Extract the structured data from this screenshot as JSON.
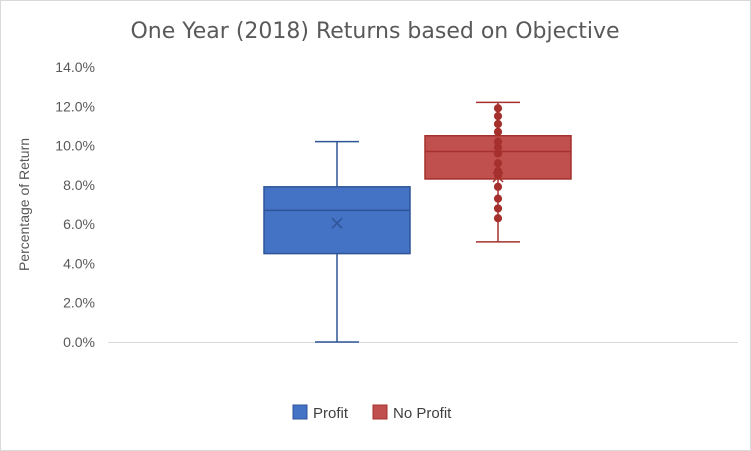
{
  "chart_data": {
    "type": "box",
    "title": "One Year (2018) Returns based on Objective",
    "xlabel": "",
    "ylabel": "Percentage of Return",
    "ylim": [
      0,
      14
    ],
    "y_ticks": [
      "0.0%",
      "2.0%",
      "4.0%",
      "6.0%",
      "8.0%",
      "10.0%",
      "12.0%",
      "14.0%"
    ],
    "y_tick_values": [
      0,
      2,
      4,
      6,
      8,
      10,
      12,
      14
    ],
    "grid": false,
    "legend_position": "bottom",
    "series": [
      {
        "name": "Profit",
        "color": "#4472c4",
        "edge_color": "#2f5597",
        "min": 0.0,
        "q1": 4.5,
        "median": 6.7,
        "mean": 6.05,
        "q3": 7.9,
        "max": 10.2,
        "points": []
      },
      {
        "name": "No Profit",
        "color": "#c0504d",
        "edge_color": "#a5302d",
        "min": 5.1,
        "q1": 8.3,
        "median": 9.7,
        "mean": 8.4,
        "q3": 10.5,
        "max": 12.2,
        "points": [
          6.3,
          6.8,
          7.3,
          7.9,
          8.5,
          8.7,
          9.1,
          9.6,
          9.9,
          10.2,
          10.7,
          11.1,
          11.5,
          11.9
        ]
      }
    ]
  }
}
